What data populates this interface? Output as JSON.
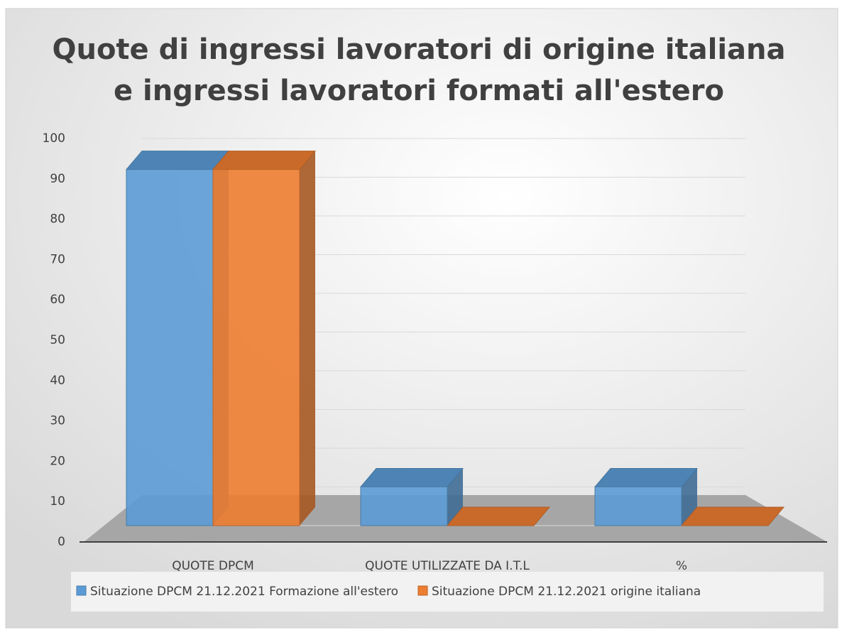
{
  "chart_data": {
    "type": "bar3d",
    "title": "Quote di ingressi lavoratori di origine italiana",
    "subtitle": "e ingressi lavoratori formati all'estero",
    "categories": [
      "QUOTE DPCM",
      "QUOTE UTILIZZATE DA I.T.L",
      "%"
    ],
    "series": [
      {
        "name": "Situazione DPCM 21.12.2021 Formazione all'estero",
        "color": "#5b9bd5",
        "values": [
          92,
          10,
          10
        ]
      },
      {
        "name": "Situazione DPCM 21.12.2021 origine italiana",
        "color": "#ed7d31",
        "values": [
          92,
          0,
          0
        ]
      }
    ],
    "ylim": [
      0,
      100
    ],
    "yticks": [
      0,
      10,
      20,
      30,
      40,
      50,
      60,
      70,
      80,
      90,
      100
    ],
    "grid": true,
    "legend": "bottom"
  }
}
